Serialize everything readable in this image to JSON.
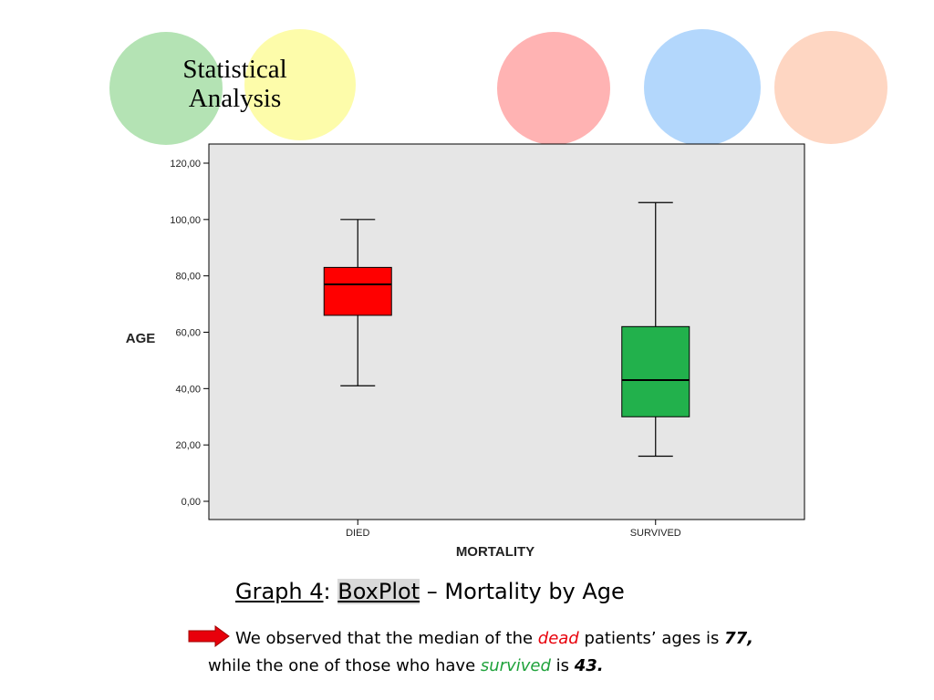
{
  "slide": {
    "title_line1": "Statistical",
    "title_line2": "Analysis",
    "circle_colors": [
      "#b4e3b4",
      "#fdfcaa",
      "#ffb3b3",
      "#b3d7fc",
      "#fed6c2"
    ]
  },
  "chart_data": {
    "type": "boxplot",
    "ylabel": "AGE",
    "xlabel": "MORTALITY",
    "ylim": [
      0,
      120
    ],
    "yticks": [
      0,
      20,
      40,
      60,
      80,
      100,
      120
    ],
    "ytick_labels": [
      "0,00",
      "20,00",
      "40,00",
      "60,00",
      "80,00",
      "100,00",
      "120,00"
    ],
    "categories": [
      "DIED",
      "SURVIVED"
    ],
    "boxes": [
      {
        "category": "DIED",
        "min": 41,
        "q1": 66,
        "median": 77,
        "q3": 83,
        "max": 100,
        "color": "#ff0000"
      },
      {
        "category": "SURVIVED",
        "min": 16,
        "q1": 30,
        "median": 43,
        "q3": 62,
        "max": 106,
        "color": "#22b14c"
      }
    ],
    "plot_background": "#e6e6e6",
    "grid": false
  },
  "caption": {
    "graph_number": "Graph 4",
    "colon": ":",
    "boxplot": "BoxPlot",
    "rest": " – Mortality by Age"
  },
  "note": {
    "part1": "We observed that the median of the ",
    "dead": "dead",
    "part2": " patients’ ages is ",
    "dead_median": "77",
    "part3": ",",
    "part4": "while the  one of those who have ",
    "survived": "survived",
    "part5": " is ",
    "survived_median": "43",
    "part6": "."
  }
}
